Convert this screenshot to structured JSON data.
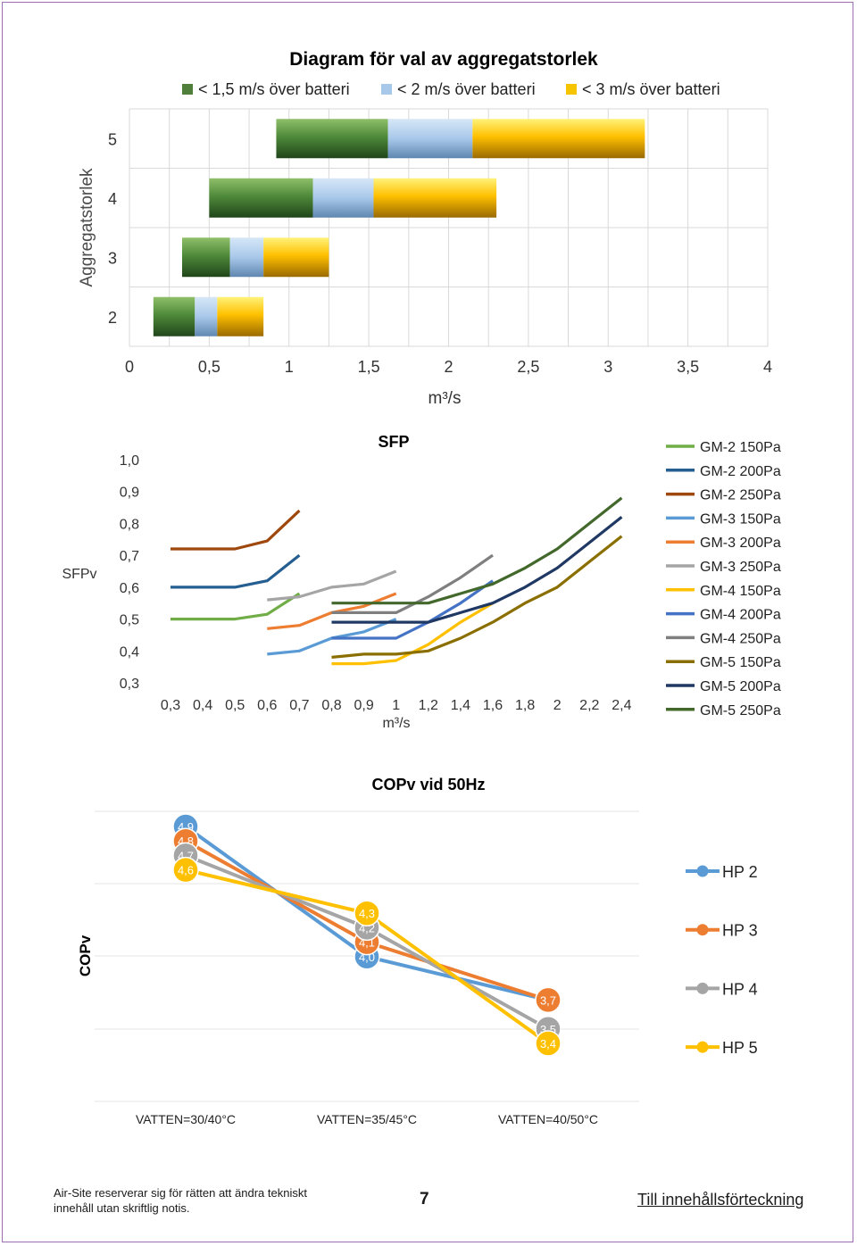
{
  "colors": {
    "green": "#4f7f3a",
    "lightblue": "#a8c8ea",
    "yellow": "#f7c400"
  },
  "chart_data": [
    {
      "type": "bar",
      "stacked": true,
      "orientation": "horizontal",
      "title": "Diagram för val av aggregatstorlek",
      "xlabel": "m³/s",
      "ylabel": "Aggregatstorlek",
      "xlim": [
        0,
        4
      ],
      "xticks": [
        "0",
        "0,5",
        "1",
        "1,5",
        "2",
        "2,5",
        "3",
        "3,5",
        "4"
      ],
      "categories": [
        "2",
        "3",
        "4",
        "5"
      ],
      "legend": [
        "< 1,5 m/s över batteri",
        "< 2 m/s över batteri",
        "< 3 m/s över batteri"
      ],
      "bars": [
        {
          "size": "2",
          "start": 0.15,
          "green_end": 0.41,
          "blue_end": 0.55,
          "yellow_end": 0.84
        },
        {
          "size": "3",
          "start": 0.33,
          "green_end": 0.63,
          "blue_end": 0.84,
          "yellow_end": 1.25
        },
        {
          "size": "4",
          "start": 0.5,
          "green_end": 1.15,
          "blue_end": 1.53,
          "yellow_end": 2.3
        },
        {
          "size": "5",
          "start": 0.92,
          "green_end": 1.62,
          "blue_end": 2.15,
          "yellow_end": 3.23
        }
      ]
    },
    {
      "type": "line",
      "title": "SFP",
      "xlabel": "m³/s",
      "ylabel": "SFPv",
      "ylim": [
        0.3,
        1.0
      ],
      "yticks": [
        "1,0",
        "0,9",
        "0,8",
        "0,7",
        "0,6",
        "0,5",
        "0,4",
        "0,3"
      ],
      "xticks": [
        "0,3",
        "0,4",
        "0,5",
        "0,6",
        "0,7",
        "0,8",
        "0,9",
        "1",
        "1,2",
        "1,4",
        "1,6",
        "1,8",
        "2",
        "2,2",
        "2,4"
      ],
      "series": [
        {
          "name": "GM-2 150Pa",
          "color": "#70ad47",
          "x": [
            0,
            1,
            2,
            3,
            4
          ],
          "y": [
            0.5,
            0.5,
            0.5,
            0.515,
            0.58
          ]
        },
        {
          "name": "GM-2 200Pa",
          "color": "#255e91",
          "x": [
            0,
            1,
            2,
            3,
            4
          ],
          "y": [
            0.6,
            0.6,
            0.6,
            0.62,
            0.7
          ]
        },
        {
          "name": "GM-2 250Pa",
          "color": "#9e480e",
          "x": [
            0,
            1,
            2,
            3,
            4
          ],
          "y": [
            0.72,
            0.72,
            0.72,
            0.745,
            0.84
          ]
        },
        {
          "name": "GM-3 150Pa",
          "color": "#5b9bd5",
          "x": [
            3,
            4,
            5,
            6,
            7
          ],
          "y": [
            0.39,
            0.4,
            0.44,
            0.46,
            0.5
          ]
        },
        {
          "name": "GM-3 200Pa",
          "color": "#ed7d31",
          "x": [
            3,
            4,
            5,
            6,
            7
          ],
          "y": [
            0.47,
            0.48,
            0.52,
            0.54,
            0.58
          ]
        },
        {
          "name": "GM-3 250Pa",
          "color": "#a5a5a5",
          "x": [
            3,
            4,
            5,
            6,
            7
          ],
          "y": [
            0.56,
            0.57,
            0.6,
            0.61,
            0.65
          ]
        },
        {
          "name": "GM-4 150Pa",
          "color": "#ffc000",
          "x": [
            5,
            6,
            7,
            8,
            9,
            10
          ],
          "y": [
            0.36,
            0.36,
            0.37,
            0.42,
            0.49,
            0.55
          ]
        },
        {
          "name": "GM-4 200Pa",
          "color": "#4472c4",
          "x": [
            5,
            6,
            7,
            8,
            9,
            10
          ],
          "y": [
            0.44,
            0.44,
            0.44,
            0.49,
            0.55,
            0.62
          ]
        },
        {
          "name": "GM-4 250Pa",
          "color": "#7f7f7f",
          "x": [
            5,
            6,
            7,
            8,
            9,
            10
          ],
          "y": [
            0.52,
            0.52,
            0.52,
            0.57,
            0.63,
            0.7
          ]
        },
        {
          "name": "GM-5 150Pa",
          "color": "#8a6f00",
          "x": [
            5,
            6,
            7,
            8,
            9,
            10,
            11,
            12,
            13,
            14
          ],
          "y": [
            0.38,
            0.39,
            0.39,
            0.4,
            0.44,
            0.49,
            0.55,
            0.6,
            0.68,
            0.76
          ]
        },
        {
          "name": "GM-5 200Pa",
          "color": "#203864",
          "x": [
            5,
            6,
            7,
            8,
            9,
            10,
            11,
            12,
            13,
            14
          ],
          "y": [
            0.49,
            0.49,
            0.49,
            0.49,
            0.52,
            0.55,
            0.6,
            0.66,
            0.74,
            0.82
          ]
        },
        {
          "name": "GM-5 250Pa",
          "color": "#43682b",
          "x": [
            5,
            6,
            7,
            8,
            9,
            10,
            11,
            12,
            13,
            14
          ],
          "y": [
            0.55,
            0.55,
            0.55,
            0.55,
            0.58,
            0.61,
            0.66,
            0.72,
            0.8,
            0.88
          ]
        }
      ]
    },
    {
      "type": "line",
      "title": "COPv vid 50Hz",
      "ylabel": "COPv",
      "ylim": [
        3.0,
        5.2
      ],
      "categories": [
        "VATTEN=30/40°C",
        "VATTEN=35/45°C",
        "VATTEN=40/50°C"
      ],
      "series": [
        {
          "name": "HP 2",
          "color": "#5b9bd5",
          "values": [
            4.9,
            4.0,
            3.7
          ],
          "labels": [
            "4,9",
            "4,0",
            "3,7"
          ]
        },
        {
          "name": "HP 3",
          "color": "#ed7d31",
          "values": [
            4.8,
            4.1,
            3.7
          ],
          "labels": [
            "4,8",
            "4,1",
            "3,7"
          ]
        },
        {
          "name": "HP 4",
          "color": "#a5a5a5",
          "values": [
            4.7,
            4.2,
            3.5
          ],
          "labels": [
            "4,7",
            "4,2",
            "3,5"
          ]
        },
        {
          "name": "HP 5",
          "color": "#ffc000",
          "values": [
            4.6,
            4.3,
            3.4
          ],
          "labels": [
            "4,6",
            "4,3",
            "3,4"
          ]
        }
      ]
    }
  ],
  "footer": {
    "note": "Air-Site reserverar sig för rätten att ändra tekniskt innehåll utan skriftlig notis.",
    "page": "7",
    "link": "Till innehållsförteckning"
  }
}
